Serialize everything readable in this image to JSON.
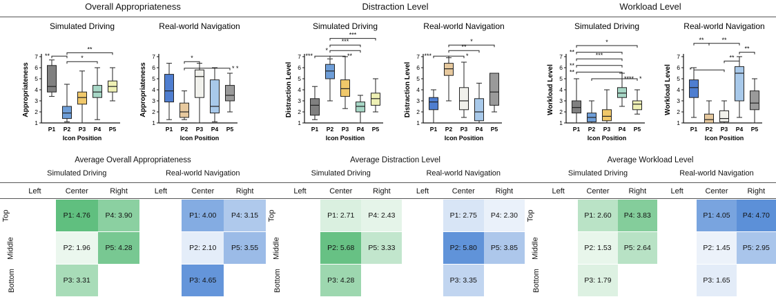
{
  "sections": [
    {
      "title": "Overall Appropriateness",
      "charts": [
        {
          "type": "box",
          "title": "Simulated Driving",
          "ylabel": "Appropriateness",
          "xlabel": "Icon Position",
          "categories": [
            "P1",
            "P2",
            "P3",
            "P4",
            "P5"
          ],
          "ylim": [
            1,
            7
          ],
          "yticks": [
            "1",
            "2",
            "3",
            "4",
            "5",
            "6",
            "7"
          ],
          "colors": [
            "#808080",
            "#6e9ed8",
            "#f0c86a",
            "#a7d7c6",
            "#eef0b4"
          ],
          "boxes": [
            {
              "min": 3.4,
              "q1": 3.8,
              "median": 4.3,
              "q3": 6.2,
              "max": 6.7
            },
            {
              "min": 1.1,
              "q1": 1.4,
              "median": 1.9,
              "q3": 2.5,
              "max": 4.5
            },
            {
              "min": 1.0,
              "q1": 2.7,
              "median": 3.3,
              "q3": 3.8,
              "max": 5.7
            },
            {
              "min": 1.3,
              "q1": 3.3,
              "median": 3.8,
              "q3": 4.4,
              "max": 6.0
            },
            {
              "min": 3.0,
              "q1": 3.8,
              "median": 4.3,
              "q3": 4.8,
              "max": 6.0
            }
          ],
          "annotations": [
            {
              "a": 1,
              "b": 2,
              "label": "**",
              "y": 7.05,
              "side": "left"
            },
            {
              "a": 2,
              "b": 4,
              "label": "*",
              "y": 6.55,
              "side": "top"
            },
            {
              "a": 2,
              "b": 5,
              "label": "**",
              "y": 7.35,
              "side": "top"
            }
          ]
        },
        {
          "type": "box",
          "title": "Real-world Navigation",
          "ylabel": "Appropriateness",
          "xlabel": "Icon Position",
          "categories": [
            "P1",
            "P2",
            "P3",
            "P4",
            "P5"
          ],
          "ylim": [
            1,
            7
          ],
          "yticks": [
            "1",
            "2",
            "3",
            "4",
            "5",
            "6",
            "7"
          ],
          "colors": [
            "#4f7ed0",
            "#e7c99e",
            "#f1f1ec",
            "#a8c9ea",
            "#9a9a9a"
          ],
          "boxes": [
            {
              "min": 1.3,
              "q1": 2.9,
              "median": 3.9,
              "q3": 5.4,
              "max": 6.4
            },
            {
              "min": 1.3,
              "q1": 1.5,
              "median": 2.0,
              "q3": 2.8,
              "max": 3.9
            },
            {
              "min": 1.0,
              "q1": 3.3,
              "median": 5.2,
              "q3": 5.8,
              "max": 6.4
            },
            {
              "min": 1.1,
              "q1": 1.9,
              "median": 2.5,
              "q3": 4.9,
              "max": 6.0
            },
            {
              "min": 2.0,
              "q1": 3.0,
              "median": 3.5,
              "q3": 4.4,
              "max": 5.5
            }
          ],
          "annotations": [
            {
              "a": 2,
              "b": 3,
              "label": "*",
              "y": 6.55,
              "side": "top"
            },
            {
              "a": 2,
              "b": 5,
              "label": "* *",
              "y": 5.95,
              "side": "right"
            }
          ]
        }
      ],
      "heatmap": {
        "title": "Average Overall Appropriateness",
        "conditions": [
          "Simulated Driving",
          "Real-world Navigation"
        ],
        "columns": [
          "Left",
          "Center",
          "Right"
        ],
        "rows": [
          "Top",
          "Middle",
          "Bottom"
        ],
        "palettes": [
          [
            "#eef8f0",
            "#5ebe7d"
          ],
          [
            "#eef4fb",
            "#5c90d8"
          ]
        ],
        "range": [
          1.9,
          4.8
        ],
        "grids": [
          [
            [
              "",
              "P1: 4.76",
              "P4: 3.90"
            ],
            [
              "",
              "P2: 1.96",
              "P5: 4.28"
            ],
            [
              "",
              "P3: 3.31",
              ""
            ]
          ],
          [
            [
              "",
              "P1: 4.00",
              "P4: 3.15"
            ],
            [
              "",
              "P2: 2.10",
              "P5: 3.55"
            ],
            [
              "",
              "P3: 4.65",
              ""
            ]
          ]
        ],
        "values": [
          [
            [
              null,
              4.76,
              3.9
            ],
            [
              null,
              1.96,
              4.28
            ],
            [
              null,
              3.31,
              null
            ]
          ],
          [
            [
              null,
              4.0,
              3.15
            ],
            [
              null,
              2.1,
              3.55
            ],
            [
              null,
              4.65,
              null
            ]
          ]
        ]
      }
    },
    {
      "title": "Distraction Level",
      "charts": [
        {
          "type": "box",
          "title": "Simulated Driving",
          "ylabel": "Distraction Level",
          "xlabel": "Icon Position",
          "categories": [
            "P1",
            "P2",
            "P3",
            "P4",
            "P5"
          ],
          "ylim": [
            1,
            7
          ],
          "yticks": [
            "1",
            "2",
            "3",
            "4",
            "5",
            "6",
            "7"
          ],
          "colors": [
            "#808080",
            "#6e9ed8",
            "#f0c86a",
            "#a7d7c6",
            "#eef0b4"
          ],
          "boxes": [
            {
              "min": 1.3,
              "q1": 1.7,
              "median": 2.6,
              "q3": 3.2,
              "max": 4.3
            },
            {
              "min": 3.0,
              "q1": 5.0,
              "median": 5.7,
              "q3": 6.3,
              "max": 6.8
            },
            {
              "min": 2.3,
              "q1": 3.4,
              "median": 4.1,
              "q3": 4.9,
              "max": 7.0
            },
            {
              "min": 1.0,
              "q1": 2.0,
              "median": 2.5,
              "q3": 2.9,
              "max": 3.5
            },
            {
              "min": 2.0,
              "q1": 2.6,
              "median": 3.2,
              "q3": 3.7,
              "max": 5.0
            }
          ],
          "annotations": [
            {
              "a": 1,
              "b": 2,
              "label": "***",
              "y": 7.05,
              "side": "left"
            },
            {
              "a": 2,
              "b": 3,
              "label": "**",
              "y": 7.05,
              "side": "right"
            },
            {
              "a": 2,
              "b": 4,
              "label": "*",
              "y": 7.55,
              "side": "left"
            },
            {
              "a": 2,
              "b": 4,
              "label": "***",
              "y": 8.05,
              "side": "top"
            },
            {
              "a": 2,
              "b": 5,
              "label": "***",
              "y": 8.65,
              "side": "top"
            }
          ]
        },
        {
          "type": "box",
          "title": "Real-world Navigation",
          "ylabel": "Distraction Level",
          "xlabel": "Icon Position",
          "categories": [
            "P1",
            "P2",
            "P3",
            "P4",
            "P5"
          ],
          "ylim": [
            1,
            7
          ],
          "yticks": [
            "1",
            "2",
            "3",
            "4",
            "5",
            "6",
            "7"
          ],
          "colors": [
            "#4f7ed0",
            "#e7c99e",
            "#f1f1ec",
            "#a8c9ea",
            "#9a9a9a"
          ],
          "boxes": [
            {
              "min": 1.0,
              "q1": 2.2,
              "median": 2.9,
              "q3": 3.3,
              "max": 4.0
            },
            {
              "min": 3.0,
              "q1": 5.3,
              "median": 5.9,
              "q3": 6.4,
              "max": 6.9
            },
            {
              "min": 1.5,
              "q1": 2.2,
              "median": 3.0,
              "q3": 4.2,
              "max": 6.5
            },
            {
              "min": 1.0,
              "q1": 1.2,
              "median": 2.0,
              "q3": 3.2,
              "max": 4.6
            },
            {
              "min": 2.0,
              "q1": 2.6,
              "median": 3.8,
              "q3": 5.5,
              "max": 5.5
            }
          ],
          "annotations": [
            {
              "a": 1,
              "b": 2,
              "label": "***",
              "y": 7.05,
              "side": "left"
            },
            {
              "a": 2,
              "b": 3,
              "label": "*",
              "y": 7.05,
              "side": "right"
            },
            {
              "a": 2,
              "b": 4,
              "label": "**",
              "y": 7.55,
              "side": "top"
            },
            {
              "a": 2,
              "b": 5,
              "label": "*",
              "y": 8.05,
              "side": "top"
            }
          ]
        }
      ],
      "heatmap": {
        "title": "Average Distraction Level",
        "conditions": [
          "Simulated Driving",
          "Real-world Navigation"
        ],
        "columns": [
          "Left",
          "Center",
          "Right"
        ],
        "rows": [
          "Top",
          "Middle",
          "Bottom"
        ],
        "palettes": [
          [
            "#eef8f0",
            "#5ebe7d"
          ],
          [
            "#eef4fb",
            "#5c90d8"
          ]
        ],
        "range": [
          2.2,
          5.9
        ],
        "grids": [
          [
            [
              "",
              "P1: 2.71",
              "P4: 2.43"
            ],
            [
              "",
              "P2: 5.68",
              "P5: 3.33"
            ],
            [
              "",
              "P3: 4.28",
              ""
            ]
          ],
          [
            [
              "",
              "P1: 2.75",
              "P4: 2.30"
            ],
            [
              "",
              "P2: 5.80",
              "P5: 3.85"
            ],
            [
              "",
              "P3: 3.35",
              ""
            ]
          ]
        ],
        "values": [
          [
            [
              null,
              2.71,
              2.43
            ],
            [
              null,
              5.68,
              3.33
            ],
            [
              null,
              4.28,
              null
            ]
          ],
          [
            [
              null,
              2.75,
              2.3
            ],
            [
              null,
              5.8,
              3.85
            ],
            [
              null,
              3.35,
              null
            ]
          ]
        ]
      }
    },
    {
      "title": "Workload Level",
      "charts": [
        {
          "type": "box",
          "title": "Simulated Driving",
          "ylabel": "Workload Level",
          "xlabel": "Icon Position",
          "categories": [
            "P1",
            "P2",
            "P3",
            "P4",
            "P5"
          ],
          "ylim": [
            1,
            7
          ],
          "yticks": [
            "1",
            "2",
            "3",
            "4",
            "5",
            "6",
            "7"
          ],
          "colors": [
            "#808080",
            "#6e9ed8",
            "#f0c86a",
            "#a7d7c6",
            "#eef0b4"
          ],
          "boxes": [
            {
              "min": 1.0,
              "q1": 1.9,
              "median": 2.4,
              "q3": 3.0,
              "max": 5.0
            },
            {
              "min": 1.0,
              "q1": 1.1,
              "median": 1.5,
              "q3": 1.9,
              "max": 3.0
            },
            {
              "min": 1.0,
              "q1": 1.2,
              "median": 1.6,
              "q3": 2.2,
              "max": 4.0
            },
            {
              "min": 2.5,
              "q1": 3.3,
              "median": 3.7,
              "q3": 4.2,
              "max": 5.5
            },
            {
              "min": 1.8,
              "q1": 2.2,
              "median": 2.7,
              "q3": 3.0,
              "max": 4.0
            }
          ],
          "annotations": [
            {
              "a": 1,
              "b": 4,
              "label": "**",
              "y": 5.6,
              "side": "left"
            },
            {
              "a": 2,
              "b": 4,
              "label": "****",
              "y": 5.0,
              "side": "right"
            },
            {
              "a": 4,
              "b": 5,
              "label": "*",
              "y": 5.0,
              "side": "right"
            },
            {
              "a": 1,
              "b": 4,
              "label": "**",
              "y": 6.2,
              "side": "left"
            },
            {
              "a": 1,
              "b": 4,
              "label": "***",
              "y": 6.8,
              "side": "top"
            },
            {
              "a": 1,
              "b": 4,
              "label": "**",
              "y": 7.4,
              "side": "left"
            },
            {
              "a": 1,
              "b": 5,
              "label": "*",
              "y": 8.0,
              "side": "top"
            }
          ]
        },
        {
          "type": "box",
          "title": "Real-world Navigation",
          "ylabel": "Workload Level",
          "xlabel": "Icon Position",
          "categories": [
            "P1",
            "P2",
            "P3",
            "P4",
            "P5"
          ],
          "ylim": [
            1,
            7
          ],
          "yticks": [
            "1",
            "2",
            "3",
            "4",
            "5",
            "6",
            "7"
          ],
          "colors": [
            "#4f7ed0",
            "#e7c99e",
            "#f1f1ec",
            "#a8c9ea",
            "#9a9a9a"
          ],
          "boxes": [
            {
              "min": 1.5,
              "q1": 3.3,
              "median": 4.2,
              "q3": 4.9,
              "max": 6.0
            },
            {
              "min": 1.0,
              "q1": 1.0,
              "median": 1.3,
              "q3": 1.8,
              "max": 3.0
            },
            {
              "min": 1.0,
              "q1": 1.1,
              "median": 1.4,
              "q3": 2.1,
              "max": 3.0
            },
            {
              "min": 1.5,
              "q1": 3.0,
              "median": 5.5,
              "q3": 6.1,
              "max": 7.0
            },
            {
              "min": 1.0,
              "q1": 2.2,
              "median": 2.8,
              "q3": 3.9,
              "max": 5.0
            }
          ],
          "annotations": [
            {
              "a": 1,
              "b": 3,
              "label": "*",
              "y": 5.8,
              "side": "left"
            },
            {
              "a": 3,
              "b": 4,
              "label": "**",
              "y": 6.6,
              "side": "top"
            },
            {
              "a": 4,
              "b": 5,
              "label": "**",
              "y": 7.4,
              "side": "top"
            },
            {
              "a": 1,
              "b": 2,
              "label": "**",
              "y": 8.2,
              "side": "top"
            },
            {
              "a": 2,
              "b": 4,
              "label": "**",
              "y": 8.2,
              "side": "top"
            }
          ]
        }
      ],
      "heatmap": {
        "title": "Average Workload Level",
        "conditions": [
          "Simulated Driving",
          "Real-world Navigation"
        ],
        "columns": [
          "Left",
          "Center",
          "Right"
        ],
        "rows": [
          "Top",
          "Middle",
          "Bottom"
        ],
        "palettes": [
          [
            "#eef8f0",
            "#5ebe7d"
          ],
          [
            "#eef4fb",
            "#5c90d8"
          ]
        ],
        "range": [
          1.4,
          4.7
        ],
        "grids": [
          [
            [
              "",
              "P1: 2.60",
              "P4: 3.83"
            ],
            [
              "",
              "P2: 1.53",
              "P5: 2.64"
            ],
            [
              "",
              "P3: 1.79",
              ""
            ]
          ],
          [
            [
              "",
              "P1: 4.05",
              "P4: 4.70"
            ],
            [
              "",
              "P2: 1.45",
              "P5: 2.95"
            ],
            [
              "",
              "P3: 1.65",
              ""
            ]
          ]
        ],
        "values": [
          [
            [
              null,
              2.6,
              3.83
            ],
            [
              null,
              1.53,
              2.64
            ],
            [
              null,
              1.79,
              null
            ]
          ],
          [
            [
              null,
              4.05,
              4.7
            ],
            [
              null,
              1.45,
              2.95
            ],
            [
              null,
              1.65,
              null
            ]
          ]
        ]
      }
    }
  ]
}
